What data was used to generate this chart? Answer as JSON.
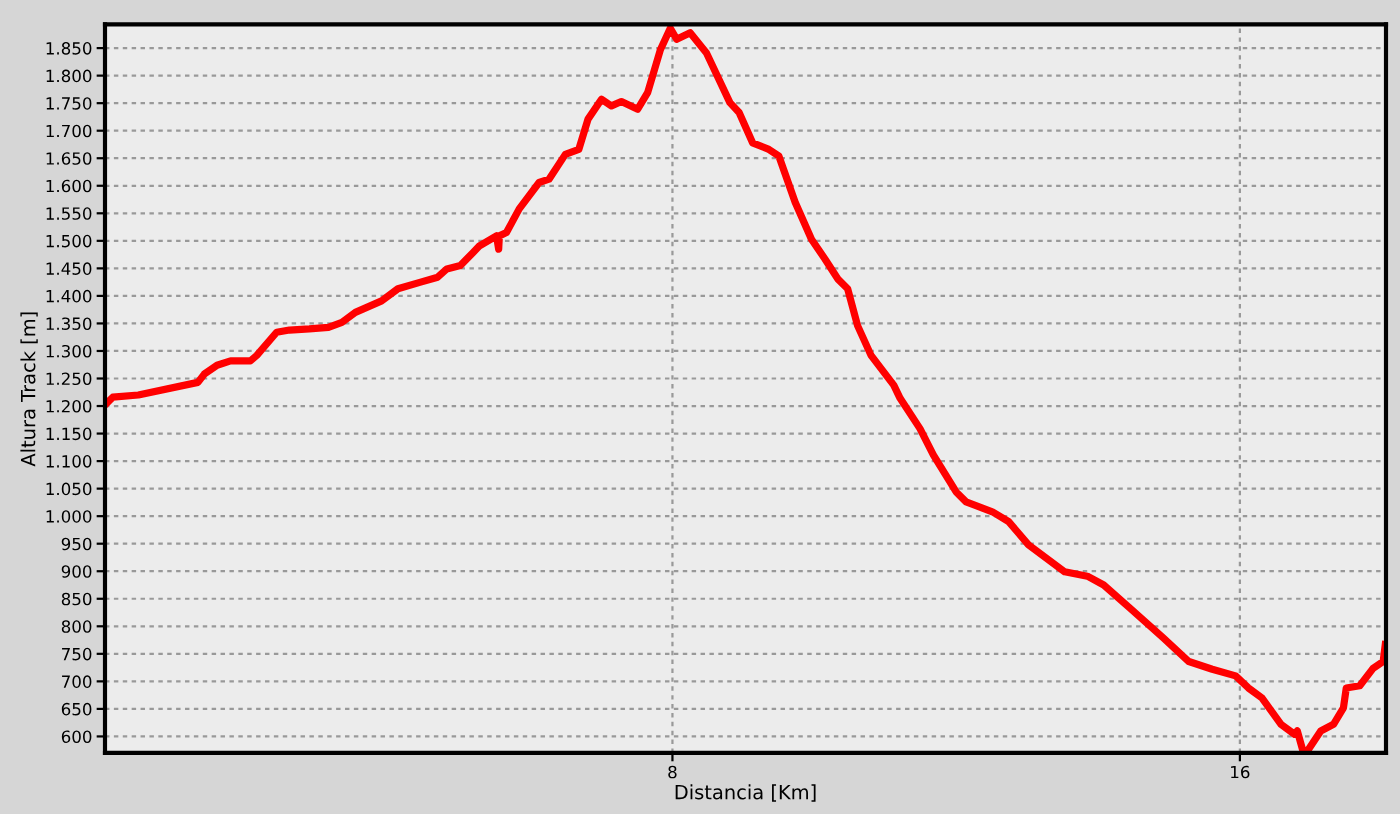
{
  "chart_data": {
    "type": "line",
    "xlabel": "Distancia [Km]",
    "ylabel": "Altura Track [m]",
    "xlim": [
      0,
      18.06
    ],
    "ylim": [
      570,
      1893
    ],
    "xticks": [
      8,
      16
    ],
    "yticks": [
      {
        "value": 600,
        "label": "600"
      },
      {
        "value": 650,
        "label": "650"
      },
      {
        "value": 700,
        "label": "700"
      },
      {
        "value": 750,
        "label": "750"
      },
      {
        "value": 800,
        "label": "800"
      },
      {
        "value": 850,
        "label": "850"
      },
      {
        "value": 900,
        "label": "900"
      },
      {
        "value": 950,
        "label": "950"
      },
      {
        "value": 1000,
        "label": "1.000"
      },
      {
        "value": 1050,
        "label": "1.050"
      },
      {
        "value": 1100,
        "label": "1.100"
      },
      {
        "value": 1150,
        "label": "1.150"
      },
      {
        "value": 1200,
        "label": "1.200"
      },
      {
        "value": 1250,
        "label": "1.250"
      },
      {
        "value": 1300,
        "label": "1.300"
      },
      {
        "value": 1350,
        "label": "1.350"
      },
      {
        "value": 1400,
        "label": "1.400"
      },
      {
        "value": 1450,
        "label": "1.450"
      },
      {
        "value": 1500,
        "label": "1.500"
      },
      {
        "value": 1550,
        "label": "1.550"
      },
      {
        "value": 1600,
        "label": "1.600"
      },
      {
        "value": 1650,
        "label": "1.650"
      },
      {
        "value": 1700,
        "label": "1.700"
      },
      {
        "value": 1750,
        "label": "1.750"
      },
      {
        "value": 1800,
        "label": "1.800"
      },
      {
        "value": 1850,
        "label": "1.850"
      }
    ],
    "grid": true,
    "marker": "none",
    "line_style": "solid",
    "series": [
      {
        "color": "#ff0000",
        "x": [
          0,
          0.11,
          0.47,
          1.31,
          1.4,
          1.58,
          1.77,
          2.05,
          2.14,
          2.42,
          2.6,
          2.88,
          3.15,
          3.34,
          3.53,
          3.9,
          4.13,
          4.45,
          4.69,
          4.82,
          5.01,
          5.19,
          5.28,
          5.52,
          5.55,
          5.56,
          5.66,
          5.84,
          6.12,
          6.26,
          6.49,
          6.68,
          6.81,
          7.0,
          7.14,
          7.28,
          7.51,
          7.65,
          7.83,
          7.97,
          8.06,
          8.25,
          8.48,
          8.81,
          8.94,
          9.13,
          9.36,
          9.5,
          9.73,
          9.96,
          10.15,
          10.33,
          10.47,
          10.61,
          10.8,
          11.12,
          11.21,
          11.49,
          11.68,
          12.0,
          12.14,
          12.51,
          12.74,
          13.02,
          13.53,
          13.85,
          14.08,
          14.45,
          14.92,
          15.28,
          15.61,
          15.94,
          16.12,
          16.31,
          16.58,
          16.77,
          16.81,
          16.89,
          16.95,
          17.14,
          17.32,
          17.46,
          17.5,
          17.69,
          17.88,
          18.02,
          18.05
        ],
        "values": [
          1202,
          1216,
          1220,
          1243,
          1258,
          1274,
          1282,
          1282,
          1292,
          1334,
          1338,
          1340,
          1343,
          1352,
          1370,
          1391,
          1413,
          1425,
          1434,
          1449,
          1455,
          1479,
          1491,
          1509,
          1485,
          1509,
          1515,
          1558,
          1606,
          1612,
          1657,
          1666,
          1721,
          1757,
          1745,
          1753,
          1739,
          1769,
          1847,
          1886,
          1866,
          1878,
          1841,
          1751,
          1733,
          1678,
          1666,
          1654,
          1570,
          1503,
          1467,
          1431,
          1413,
          1346,
          1292,
          1238,
          1214,
          1159,
          1111,
          1044,
          1026,
          1008,
          990,
          948,
          899,
          891,
          875,
          833,
          779,
          736,
          722,
          710,
          688,
          670,
          622,
          604,
          610,
          573,
          573,
          610,
          622,
          652,
          688,
          692,
          724,
          736,
          767
        ]
      }
    ]
  }
}
